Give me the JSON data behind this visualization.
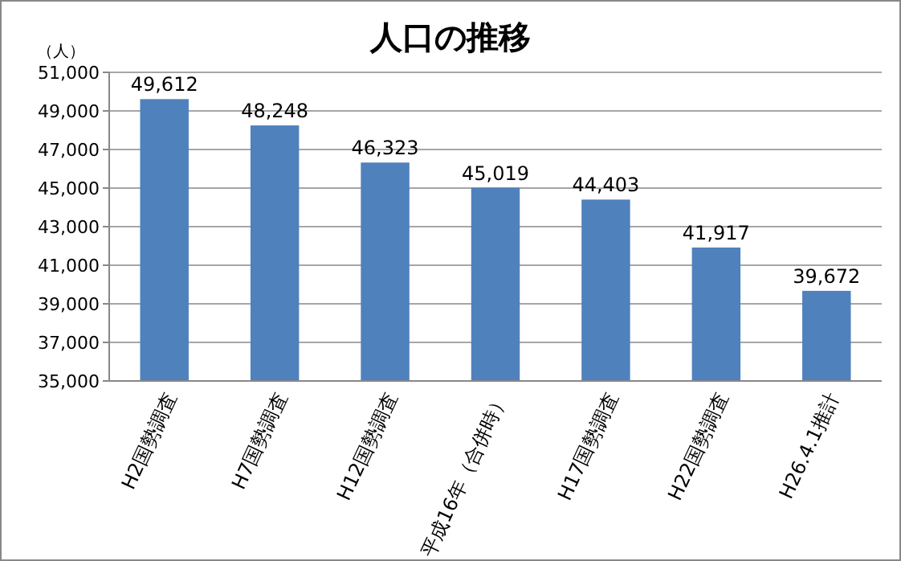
{
  "chart_data": {
    "type": "bar",
    "title": "人口の推移",
    "ylabel": "（人）",
    "categories": [
      "H2国勢調査",
      "H7国勢調査",
      "H12国勢調査",
      "平成16年（合併時）",
      "H17国勢調査",
      "H22国勢調査",
      "H26.4.1推計"
    ],
    "values": [
      49612,
      48248,
      46323,
      45019,
      44403,
      41917,
      39672
    ],
    "value_labels": [
      "49,612",
      "48,248",
      "46,323",
      "45,019",
      "44,403",
      "41,917",
      "39,672"
    ],
    "color": "#4f81bd",
    "ylim": [
      35000,
      51000
    ],
    "yticks": [
      {
        "value": 35000,
        "label": "35,000"
      },
      {
        "value": 37000,
        "label": "37,000"
      },
      {
        "value": 39000,
        "label": "39,000"
      },
      {
        "value": 41000,
        "label": "41,000"
      },
      {
        "value": 43000,
        "label": "43,000"
      },
      {
        "value": 45000,
        "label": "45,000"
      },
      {
        "value": 47000,
        "label": "47,000"
      },
      {
        "value": 49000,
        "label": "49,000"
      },
      {
        "value": 51000,
        "label": "51,000"
      }
    ],
    "grid": "y"
  }
}
